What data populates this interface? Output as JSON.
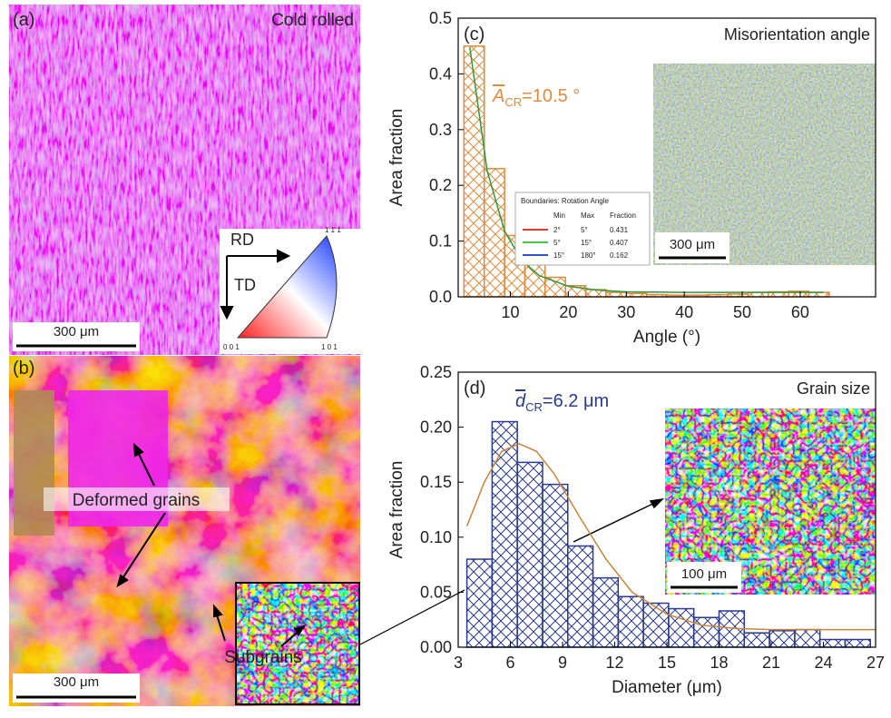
{
  "panels": {
    "a": {
      "label": "(a)",
      "title": "Cold rolled",
      "scale_bar": "300 μm",
      "rd": "RD",
      "td": "TD",
      "ipf_top": "1 1 1",
      "ipf_left": "0 0 1",
      "ipf_right": "1 0 1"
    },
    "b": {
      "label": "(b)",
      "scale_bar": "300 μm",
      "annotation_1": "Deformed grains",
      "annotation_2": "Subgrains"
    }
  },
  "chart_data": [
    {
      "type": "histogram",
      "panel_label": "(c)",
      "title": "Misorientation angle",
      "annotation": {
        "symbol": "A",
        "subscript": "CR",
        "text": "=10.5 °"
      },
      "x_label": "Angle (°)",
      "y_label": "Area fraction",
      "bins": [
        2,
        5.5,
        9,
        12.5,
        16,
        19.5,
        23,
        26.5,
        30,
        33.5,
        37,
        40.5,
        44,
        47.5,
        51,
        54.5,
        58,
        61.5,
        65
      ],
      "values": [
        0.45,
        0.23,
        0.11,
        0.06,
        0.035,
        0.02,
        0.013,
        0.008,
        0.006,
        0.004,
        0.003,
        0.003,
        0.004,
        0.005,
        0.008,
        0.009,
        0.01,
        0.008
      ],
      "color": "#e08a3c",
      "fit": {
        "color": "#2e9a3a",
        "x": [
          3,
          6,
          9,
          12,
          15,
          20,
          25,
          30,
          40,
          50,
          64
        ],
        "values": [
          0.448,
          0.226,
          0.118,
          0.065,
          0.038,
          0.019,
          0.012,
          0.009,
          0.008,
          0.008,
          0.008
        ]
      },
      "xlim": [
        1,
        73
      ],
      "ylim": [
        0,
        0.5
      ],
      "xticks": [
        10,
        20,
        30,
        40,
        50,
        60
      ],
      "yticks": [
        {
          "value": 0,
          "label": "0.0"
        },
        0.1,
        0.2,
        0.3,
        0.4,
        0.5
      ],
      "inset_scale_bar": "300 μm",
      "inset_table": {
        "title": "Boundaries: Rotation Angle",
        "header": [
          "Min",
          "Max",
          "Fraction"
        ],
        "rows": [
          [
            "2°",
            "5°",
            "0.431"
          ],
          [
            "5°",
            "15°",
            "0.407"
          ],
          [
            "15°",
            "180°",
            "0.162"
          ]
        ],
        "colors": [
          "#e53935",
          "#43c943",
          "#3050d0"
        ]
      }
    },
    {
      "type": "histogram",
      "panel_label": "(d)",
      "title": "Grain size",
      "annotation": {
        "symbol": "d",
        "subscript": "CR",
        "text": "=6.2 μm"
      },
      "x_label": "Diameter (μm)",
      "y_label": "Area fraction",
      "bins": [
        3.5,
        4.95,
        6.4,
        7.85,
        9.3,
        10.75,
        12.2,
        13.65,
        15.1,
        16.55,
        18,
        19.45,
        20.9,
        22.35,
        23.8,
        25.25,
        26.7
      ],
      "values": [
        0.08,
        0.205,
        0.168,
        0.148,
        0.092,
        0.063,
        0.046,
        0.04,
        0.035,
        0.027,
        0.033,
        0.013,
        0.015,
        0.016,
        0.007,
        0.007
      ],
      "color": "#2b3a8c",
      "fit": {
        "color": "#c8843c",
        "x": [
          3.5,
          4.5,
          5.5,
          6.5,
          7.5,
          8.5,
          10,
          11.5,
          13,
          15,
          17,
          19,
          21,
          24,
          27
        ],
        "values": [
          0.11,
          0.15,
          0.178,
          0.185,
          0.178,
          0.158,
          0.118,
          0.08,
          0.05,
          0.03,
          0.02,
          0.017,
          0.016,
          0.016,
          0.016
        ]
      },
      "xlim": [
        3,
        27
      ],
      "ylim": [
        0,
        0.25
      ],
      "xticks": [
        3,
        6,
        9,
        12,
        15,
        18,
        21,
        24,
        27
      ],
      "yticks": [
        {
          "value": 0,
          "label": "0.00"
        },
        0.05,
        {
          "value": 0.1,
          "label": "0.10"
        },
        0.15,
        {
          "value": 0.2,
          "label": "0.20"
        },
        0.25
      ],
      "inset_scale_bar": "100 μm"
    }
  ]
}
